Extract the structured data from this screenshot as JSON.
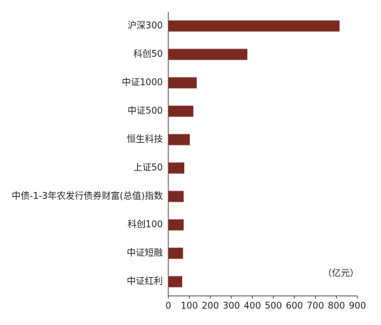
{
  "chart_data": {
    "type": "hbar",
    "categories": [
      "沪深300",
      "科创50",
      "中证1000",
      "中证500",
      "恒生科技",
      "上证50",
      "中债-1-3年农发行债券财富(总值)指数",
      "科创100",
      "中证短融",
      "中证红利"
    ],
    "values": [
      815,
      376,
      135,
      119,
      102,
      76,
      73,
      73,
      70,
      66
    ],
    "color": "#7b2a22",
    "xlim": [
      0,
      900
    ],
    "xticks": [
      0,
      100,
      200,
      300,
      400,
      500,
      600,
      700,
      800,
      900
    ],
    "annotation": "（亿元）"
  }
}
